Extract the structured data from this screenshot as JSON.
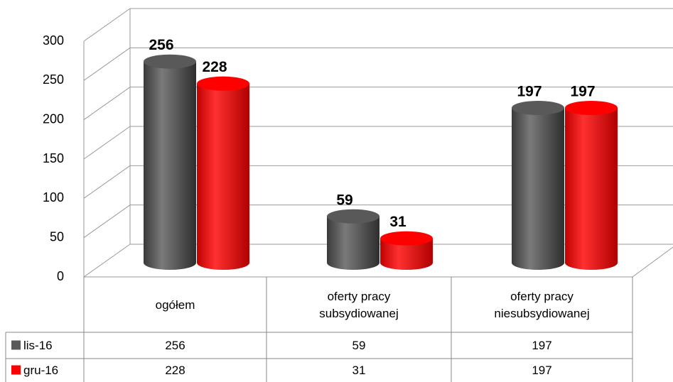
{
  "chart_data": {
    "type": "bar3d",
    "categories": [
      "ogółem",
      "oferty pracy subsydiowanej",
      "oferty pracy niesubsydiowanej"
    ],
    "series": [
      {
        "name": "lis-16",
        "color": "#595959",
        "values": [
          256,
          59,
          197
        ]
      },
      {
        "name": "gru-16",
        "color": "#ff0000",
        "values": [
          228,
          31,
          197
        ]
      }
    ],
    "ylim": [
      0,
      300
    ],
    "yticks": [
      0,
      50,
      100,
      150,
      200,
      250,
      300
    ],
    "grid": true,
    "legend": "table"
  }
}
